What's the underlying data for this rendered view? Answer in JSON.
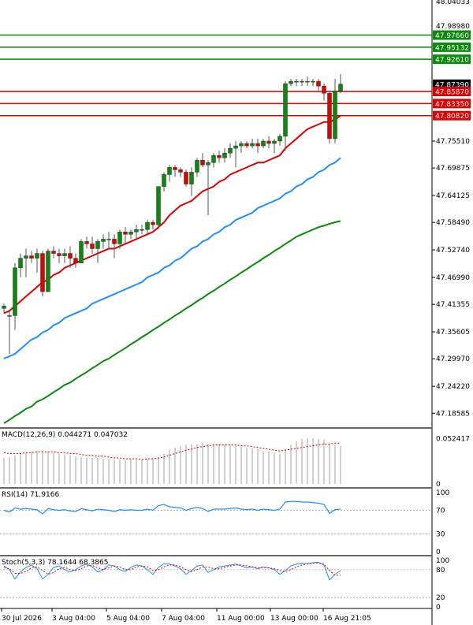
{
  "chart_data": [
    {
      "type": "candlestick",
      "panel": "price",
      "y_axis_labels": [
        "47.18585",
        "47.24220",
        "47.29970",
        "47.35605",
        "47.41355",
        "47.46990",
        "47.52740",
        "47.58490",
        "47.64125",
        "47.69875",
        "47.75510"
      ],
      "ylim": [
        47.16,
        48.05
      ],
      "grid": false,
      "candles": [
        {
          "o": 47.405,
          "h": 47.415,
          "l": 47.395,
          "c": 47.41
        },
        {
          "o": 47.39,
          "h": 47.4,
          "l": 47.31,
          "c": 47.39
        },
        {
          "o": 47.39,
          "h": 47.5,
          "l": 47.36,
          "c": 47.49
        },
        {
          "o": 47.49,
          "h": 47.52,
          "l": 47.47,
          "c": 47.51
        },
        {
          "o": 47.51,
          "h": 47.53,
          "l": 47.47,
          "c": 47.515
        },
        {
          "o": 47.515,
          "h": 47.525,
          "l": 47.5,
          "c": 47.51
        },
        {
          "o": 47.51,
          "h": 47.53,
          "l": 47.48,
          "c": 47.52
        },
        {
          "o": 47.52,
          "h": 47.525,
          "l": 47.43,
          "c": 47.44
        },
        {
          "o": 47.44,
          "h": 47.53,
          "l": 47.44,
          "c": 47.525
        },
        {
          "o": 47.525,
          "h": 47.535,
          "l": 47.51,
          "c": 47.52
        },
        {
          "o": 47.52,
          "h": 47.53,
          "l": 47.5,
          "c": 47.515
        },
        {
          "o": 47.515,
          "h": 47.53,
          "l": 47.5,
          "c": 47.52
        },
        {
          "o": 47.52,
          "h": 47.535,
          "l": 47.49,
          "c": 47.51
        },
        {
          "o": 47.51,
          "h": 47.52,
          "l": 47.49,
          "c": 47.5
        },
        {
          "o": 47.5,
          "h": 47.55,
          "l": 47.5,
          "c": 47.545
        },
        {
          "o": 47.545,
          "h": 47.555,
          "l": 47.53,
          "c": 47.54
        },
        {
          "o": 47.54,
          "h": 47.555,
          "l": 47.52,
          "c": 47.53
        },
        {
          "o": 47.53,
          "h": 47.55,
          "l": 47.5,
          "c": 47.545
        },
        {
          "o": 47.545,
          "h": 47.56,
          "l": 47.53,
          "c": 47.55
        },
        {
          "o": 47.55,
          "h": 47.565,
          "l": 47.53,
          "c": 47.55
        },
        {
          "o": 47.55,
          "h": 47.56,
          "l": 47.51,
          "c": 47.54
        },
        {
          "o": 47.54,
          "h": 47.57,
          "l": 47.53,
          "c": 47.565
        },
        {
          "o": 47.565,
          "h": 47.575,
          "l": 47.54,
          "c": 47.56
        },
        {
          "o": 47.56,
          "h": 47.57,
          "l": 47.55,
          "c": 47.565
        },
        {
          "o": 47.565,
          "h": 47.58,
          "l": 47.55,
          "c": 47.57
        },
        {
          "o": 47.57,
          "h": 47.58,
          "l": 47.56,
          "c": 47.57
        },
        {
          "o": 47.57,
          "h": 47.59,
          "l": 47.56,
          "c": 47.585
        },
        {
          "o": 47.585,
          "h": 47.59,
          "l": 47.57,
          "c": 47.58
        },
        {
          "o": 47.58,
          "h": 47.66,
          "l": 47.57,
          "c": 47.66
        },
        {
          "o": 47.66,
          "h": 47.69,
          "l": 47.65,
          "c": 47.685
        },
        {
          "o": 47.685,
          "h": 47.705,
          "l": 47.67,
          "c": 47.7
        },
        {
          "o": 47.7,
          "h": 47.705,
          "l": 47.68,
          "c": 47.695
        },
        {
          "o": 47.695,
          "h": 47.7,
          "l": 47.68,
          "c": 47.69
        },
        {
          "o": 47.69,
          "h": 47.695,
          "l": 47.66,
          "c": 47.665
        },
        {
          "o": 47.665,
          "h": 47.7,
          "l": 47.64,
          "c": 47.69
        },
        {
          "o": 47.69,
          "h": 47.72,
          "l": 47.68,
          "c": 47.715
        },
        {
          "o": 47.715,
          "h": 47.73,
          "l": 47.7,
          "c": 47.705
        },
        {
          "o": 47.705,
          "h": 47.715,
          "l": 47.6,
          "c": 47.71
        },
        {
          "o": 47.71,
          "h": 47.73,
          "l": 47.7,
          "c": 47.725
        },
        {
          "o": 47.725,
          "h": 47.735,
          "l": 47.71,
          "c": 47.72
        },
        {
          "o": 47.72,
          "h": 47.74,
          "l": 47.71,
          "c": 47.73
        },
        {
          "o": 47.73,
          "h": 47.75,
          "l": 47.72,
          "c": 47.74
        },
        {
          "o": 47.74,
          "h": 47.755,
          "l": 47.7,
          "c": 47.745
        },
        {
          "o": 47.745,
          "h": 47.755,
          "l": 47.73,
          "c": 47.75
        },
        {
          "o": 47.75,
          "h": 47.755,
          "l": 47.74,
          "c": 47.745
        },
        {
          "o": 47.745,
          "h": 47.76,
          "l": 47.74,
          "c": 47.75
        },
        {
          "o": 47.75,
          "h": 47.76,
          "l": 47.73,
          "c": 47.745
        },
        {
          "o": 47.745,
          "h": 47.76,
          "l": 47.74,
          "c": 47.755
        },
        {
          "o": 47.755,
          "h": 47.765,
          "l": 47.74,
          "c": 47.75
        },
        {
          "o": 47.75,
          "h": 47.76,
          "l": 47.73,
          "c": 47.755
        },
        {
          "o": 47.755,
          "h": 47.77,
          "l": 47.745,
          "c": 47.765
        },
        {
          "o": 47.765,
          "h": 47.88,
          "l": 47.735,
          "c": 47.875
        },
        {
          "o": 47.875,
          "h": 47.885,
          "l": 47.87,
          "c": 47.88
        },
        {
          "o": 47.88,
          "h": 47.885,
          "l": 47.87,
          "c": 47.88
        },
        {
          "o": 47.88,
          "h": 47.885,
          "l": 47.87,
          "c": 47.88
        },
        {
          "o": 47.88,
          "h": 47.89,
          "l": 47.87,
          "c": 47.88
        },
        {
          "o": 47.88,
          "h": 47.885,
          "l": 47.87,
          "c": 47.88
        },
        {
          "o": 47.88,
          "h": 47.885,
          "l": 47.86,
          "c": 47.87
        },
        {
          "o": 47.87,
          "h": 47.875,
          "l": 47.84,
          "c": 47.855
        },
        {
          "o": 47.855,
          "h": 47.86,
          "l": 47.75,
          "c": 47.76
        },
        {
          "o": 47.76,
          "h": 47.885,
          "l": 47.75,
          "c": 47.86
        },
        {
          "o": 47.86,
          "h": 47.895,
          "l": 47.855,
          "c": 47.874
        }
      ],
      "ema_fast": [
        47.395,
        47.4,
        47.41,
        47.42,
        47.43,
        47.44,
        47.45,
        47.46,
        47.465,
        47.475,
        47.48,
        47.49,
        47.495,
        47.5,
        47.505,
        47.51,
        47.515,
        47.52,
        47.525,
        47.53,
        47.53,
        47.535,
        47.54,
        47.545,
        47.55,
        47.555,
        47.56,
        47.565,
        47.575,
        47.585,
        47.6,
        47.61,
        47.62,
        47.625,
        47.63,
        47.64,
        47.65,
        47.655,
        47.66,
        47.67,
        47.675,
        47.685,
        47.69,
        47.695,
        47.7,
        47.705,
        47.71,
        47.71,
        47.715,
        47.72,
        47.725,
        47.74,
        47.75,
        47.76,
        47.77,
        47.78,
        47.785,
        47.79,
        47.795,
        47.795,
        47.8,
        47.808
      ],
      "ema_mid": [
        47.3,
        47.305,
        47.31,
        47.32,
        47.33,
        47.34,
        47.345,
        47.355,
        47.36,
        47.37,
        47.375,
        47.385,
        47.39,
        47.395,
        47.4,
        47.405,
        47.415,
        47.42,
        47.425,
        47.43,
        47.435,
        47.44,
        47.445,
        47.45,
        47.455,
        47.46,
        47.47,
        47.475,
        47.48,
        47.49,
        47.495,
        47.505,
        47.51,
        47.52,
        47.53,
        47.535,
        47.545,
        47.55,
        47.56,
        47.565,
        47.575,
        47.58,
        47.59,
        47.595,
        47.6,
        47.605,
        47.615,
        47.62,
        47.625,
        47.63,
        47.635,
        47.645,
        47.65,
        47.66,
        47.665,
        47.675,
        47.68,
        47.69,
        47.695,
        47.705,
        47.71,
        47.72
      ],
      "ema_slow": [
        47.165,
        47.172,
        47.18,
        47.187,
        47.195,
        47.2,
        47.21,
        47.215,
        47.222,
        47.23,
        47.237,
        47.245,
        47.25,
        47.258,
        47.265,
        47.272,
        47.28,
        47.287,
        47.295,
        47.3,
        47.308,
        47.315,
        47.322,
        47.33,
        47.337,
        47.345,
        47.352,
        47.36,
        47.367,
        47.375,
        47.382,
        47.39,
        47.397,
        47.405,
        47.412,
        47.42,
        47.427,
        47.435,
        47.442,
        47.45,
        47.457,
        47.465,
        47.472,
        47.48,
        47.487,
        47.495,
        47.502,
        47.51,
        47.517,
        47.525,
        47.532,
        47.54,
        47.547,
        47.555,
        47.56,
        47.565,
        47.57,
        47.575,
        47.578,
        47.582,
        47.585,
        47.588
      ],
      "price_tags": [
        {
          "value": "47.97660",
          "color": "#0a8a0a"
        },
        {
          "value": "47.95132",
          "color": "#0a8a0a"
        },
        {
          "value": "47.92610",
          "color": "#0a8a0a"
        },
        {
          "value": "47.87390",
          "color": "#000000"
        },
        {
          "value": "47.85870",
          "color": "#e00000"
        },
        {
          "value": "47.83350",
          "color": "#e00000"
        },
        {
          "value": "47.80820",
          "color": "#e00000"
        }
      ],
      "level_values": [
        47.9766,
        47.95132,
        47.9261,
        47.8739,
        47.8587,
        47.8335,
        47.8082
      ]
    },
    {
      "type": "bar",
      "panel": "macd",
      "legend": "MACD(12,26,9) 0.044271 0.047032",
      "y_axis_labels": [
        "0.052417",
        "0"
      ],
      "ylim": [
        0,
        0.06
      ],
      "values": [
        0.03,
        0.031,
        0.033,
        0.035,
        0.036,
        0.037,
        0.038,
        0.038,
        0.037,
        0.036,
        0.035,
        0.034,
        0.033,
        0.032,
        0.031,
        0.031,
        0.03,
        0.03,
        0.029,
        0.029,
        0.028,
        0.028,
        0.028,
        0.028,
        0.028,
        0.028,
        0.029,
        0.029,
        0.031,
        0.035,
        0.039,
        0.042,
        0.044,
        0.045,
        0.046,
        0.046,
        0.047,
        0.046,
        0.046,
        0.045,
        0.045,
        0.044,
        0.044,
        0.043,
        0.042,
        0.041,
        0.04,
        0.038,
        0.037,
        0.036,
        0.035,
        0.04,
        0.045,
        0.049,
        0.052,
        0.053,
        0.053,
        0.052,
        0.051,
        0.046,
        0.045,
        0.044
      ],
      "signal": [
        0.036,
        0.035,
        0.035,
        0.035,
        0.036,
        0.036,
        0.037,
        0.037,
        0.037,
        0.037,
        0.036,
        0.036,
        0.035,
        0.035,
        0.034,
        0.033,
        0.033,
        0.032,
        0.032,
        0.031,
        0.03,
        0.03,
        0.029,
        0.029,
        0.029,
        0.028,
        0.029,
        0.029,
        0.03,
        0.031,
        0.033,
        0.035,
        0.037,
        0.039,
        0.04,
        0.042,
        0.043,
        0.044,
        0.045,
        0.045,
        0.045,
        0.045,
        0.045,
        0.044,
        0.044,
        0.043,
        0.042,
        0.041,
        0.04,
        0.039,
        0.038,
        0.039,
        0.04,
        0.041,
        0.042,
        0.043,
        0.044,
        0.045,
        0.046,
        0.046,
        0.047,
        0.047
      ]
    },
    {
      "type": "line",
      "panel": "rsi",
      "legend": "RSI(14) 71.9166",
      "y_axis_labels": [
        "100",
        "70",
        "30",
        "0"
      ],
      "ylim": [
        0,
        100
      ],
      "values": [
        70,
        67,
        74,
        72,
        73,
        72,
        71,
        64,
        73,
        71,
        70,
        71,
        69,
        68,
        73,
        71,
        69,
        72,
        71,
        70,
        68,
        71,
        70,
        71,
        70,
        70,
        72,
        70,
        78,
        80,
        76,
        75,
        74,
        70,
        73,
        75,
        73,
        68,
        72,
        72,
        72,
        73,
        74,
        72,
        71,
        72,
        70,
        72,
        71,
        70,
        72,
        84,
        85,
        85,
        84,
        84,
        83,
        82,
        80,
        65,
        71,
        72
      ]
    },
    {
      "type": "line",
      "panel": "stoch",
      "legend": "Stoch(5,3,3) 78.1644 68.3865",
      "y_axis_labels": [
        "100",
        "80",
        "20",
        "0"
      ],
      "ylim": [
        0,
        100
      ],
      "k": [
        88,
        80,
        60,
        75,
        85,
        90,
        82,
        60,
        70,
        85,
        88,
        80,
        75,
        80,
        88,
        92,
        86,
        75,
        80,
        90,
        88,
        80,
        76,
        85,
        90,
        88,
        80,
        70,
        85,
        93,
        92,
        88,
        82,
        70,
        78,
        88,
        90,
        74,
        80,
        86,
        88,
        90,
        92,
        88,
        84,
        86,
        82,
        86,
        84,
        80,
        70,
        78,
        88,
        92,
        94,
        93,
        95,
        96,
        90,
        58,
        70,
        78
      ],
      "d": [
        84,
        82,
        72,
        72,
        76,
        84,
        86,
        78,
        70,
        74,
        82,
        85,
        80,
        78,
        82,
        88,
        89,
        84,
        80,
        84,
        88,
        86,
        80,
        80,
        86,
        88,
        86,
        78,
        80,
        86,
        90,
        90,
        86,
        80,
        76,
        80,
        86,
        86,
        82,
        82,
        85,
        88,
        90,
        90,
        88,
        86,
        84,
        85,
        84,
        82,
        78,
        76,
        80,
        86,
        90,
        92,
        94,
        94,
        92,
        78,
        68,
        68
      ]
    }
  ],
  "price_axis_top_label": "48.04033",
  "price_axis_label_top2": "47.98980",
  "time_axis": [
    "30 Jul 2026",
    "3 Aug 04:00",
    "5 Aug 04:00",
    "7 Aug 04:00",
    "11 Aug 00:00",
    "13 Aug 00:00",
    "16 Aug 21:05"
  ],
  "colors": {
    "up_candle": "#0a8a0a",
    "down_candle": "#e00000",
    "ema_fast": "#e00000",
    "ema_mid": "#1e90ff",
    "ema_slow": "#0a8a0a",
    "macd_hist": "#c0c0c0",
    "macd_signal": "#e00000",
    "rsi": "#1e90ff",
    "stoch_k": "#1e90ff",
    "stoch_d": "#e00000",
    "support": "#e00000",
    "resistance": "#0a8a0a"
  }
}
